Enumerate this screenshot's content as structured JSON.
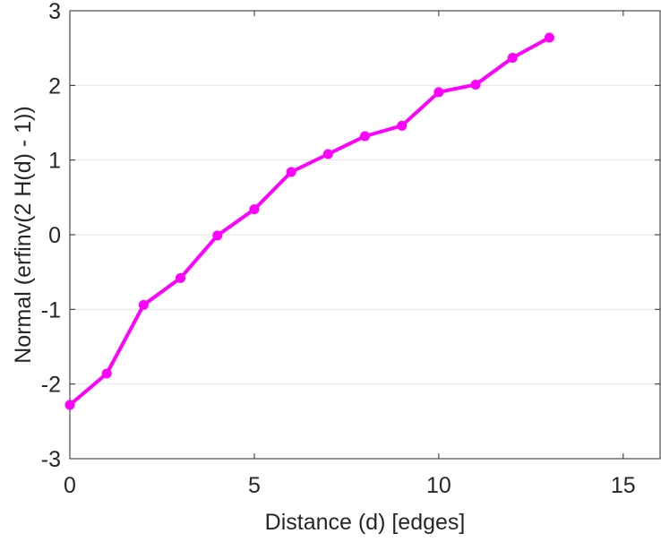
{
  "chart_data": {
    "type": "line",
    "title": "",
    "xlabel": "Distance (d) [edges]",
    "ylabel": "Normal (erfinv(2 H(d) - 1))",
    "xlim": [
      0,
      16
    ],
    "ylim": [
      -3,
      3
    ],
    "xticks": [
      0,
      5,
      10,
      15
    ],
    "yticks": [
      -3,
      -2,
      -1,
      0,
      1,
      2,
      3
    ],
    "xtick_labels": [
      "0",
      "5",
      "10",
      "15"
    ],
    "ytick_labels": [
      "-3",
      "-2",
      "-1",
      "0",
      "1",
      "2",
      "3"
    ],
    "grid": "horizontal",
    "legend": "none",
    "series": [
      {
        "color": "#ff00ff",
        "marker": "circle",
        "x": [
          0,
          1,
          2,
          3,
          4,
          5,
          6,
          7,
          8,
          9,
          10,
          11,
          12,
          13
        ],
        "y": [
          -2.28,
          -1.86,
          -0.94,
          -0.58,
          -0.01,
          0.34,
          0.84,
          1.08,
          1.32,
          1.46,
          1.91,
          2.01,
          2.37,
          2.64
        ]
      }
    ]
  }
}
